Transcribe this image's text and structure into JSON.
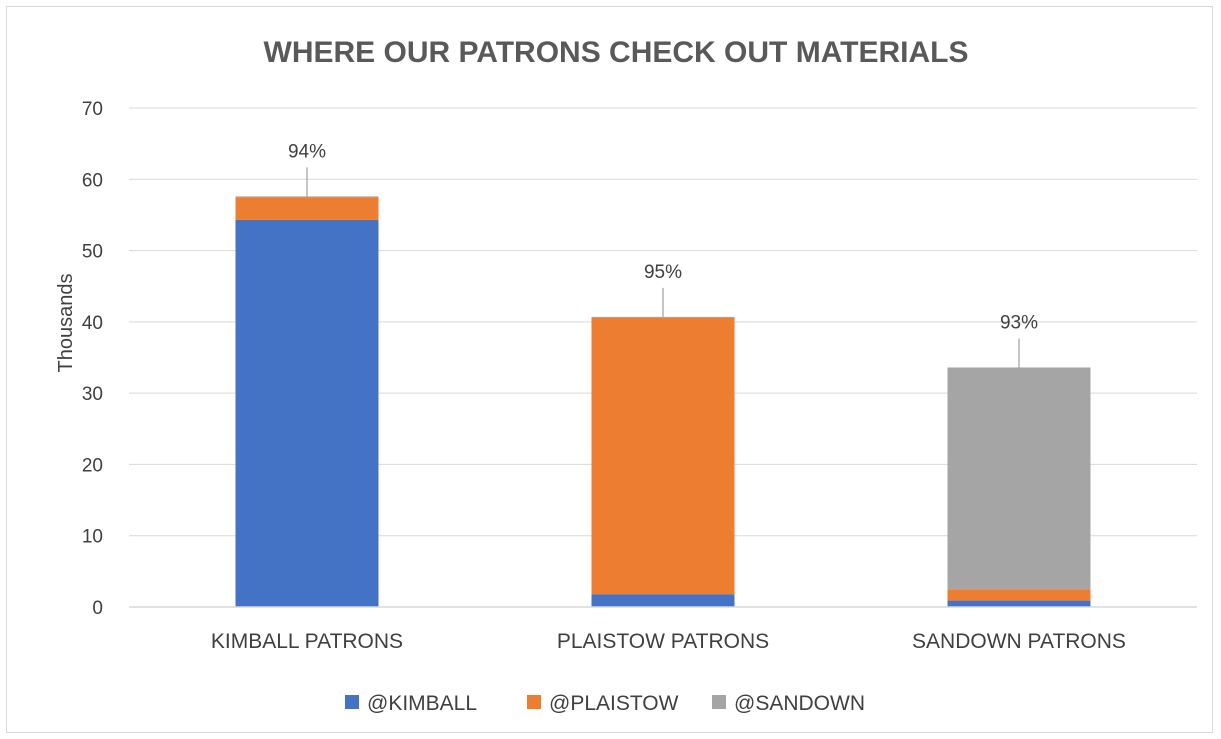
{
  "chart_data": {
    "type": "bar",
    "stacked": true,
    "title": "WHERE OUR PATRONS CHECK OUT MATERIALS",
    "xlabel": "",
    "ylabel": "Thousands",
    "ylim": [
      0,
      70
    ],
    "yticks": [
      "0",
      "10",
      "20",
      "30",
      "40",
      "50",
      "60",
      "70"
    ],
    "grid": true,
    "legend_position": "bottom",
    "categories": [
      "KIMBALL PATRONS",
      "PLAISTOW PATRONS",
      "SANDOWN PATRONS"
    ],
    "series": [
      {
        "name": "@KIMBALL",
        "color": "#4472c4",
        "values": [
          54.3,
          1.8,
          0.9
        ]
      },
      {
        "name": "@PLAISTOW",
        "color": "#ed7d31",
        "values": [
          3.2,
          38.8,
          1.6
        ]
      },
      {
        "name": "@SANDOWN",
        "color": "#a5a5a5",
        "values": [
          0.1,
          0.1,
          31.1
        ]
      }
    ],
    "annotations": [
      "94%",
      "95%",
      "93%"
    ]
  }
}
